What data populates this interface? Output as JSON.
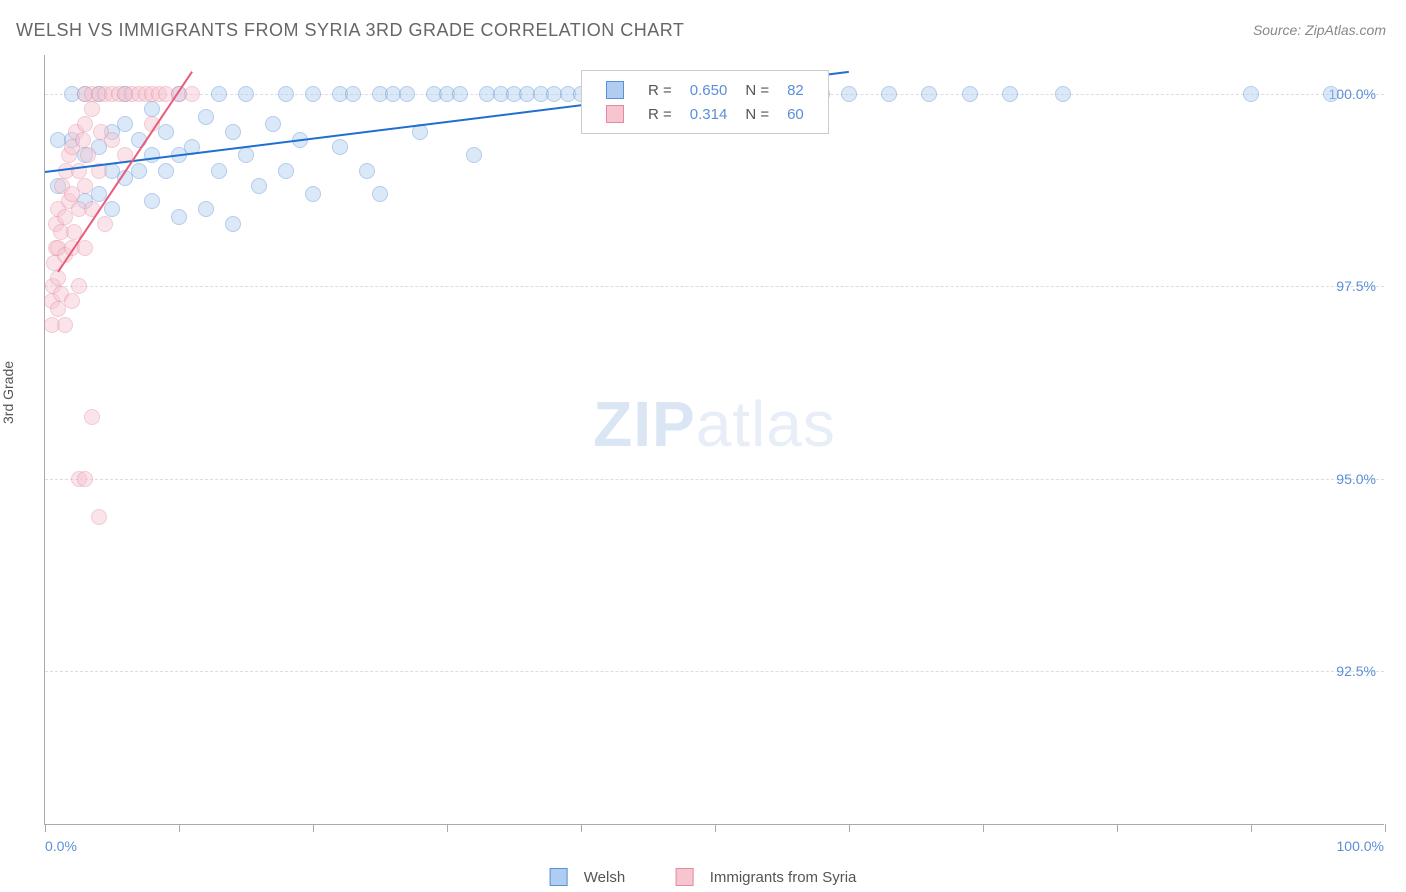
{
  "title": "WELSH VS IMMIGRANTS FROM SYRIA 3RD GRADE CORRELATION CHART",
  "source": "Source: ZipAtlas.com",
  "y_axis_label": "3rd Grade",
  "watermark_zip": "ZIP",
  "watermark_atlas": "atlas",
  "chart": {
    "type": "scatter",
    "background_color": "#ffffff",
    "grid_color": "#dddddd",
    "axis_color": "#aaaaaa",
    "tick_label_color": "#5b8fd6",
    "title_fontsize": 18,
    "title_color": "#666666",
    "label_fontsize": 14,
    "xlim": [
      0,
      100
    ],
    "ylim": [
      90.5,
      100.5
    ],
    "x_ticks": [
      0,
      10,
      20,
      30,
      40,
      50,
      60,
      70,
      80,
      90,
      100
    ],
    "x_tick_labels": {
      "0": "0.0%",
      "100": "100.0%"
    },
    "y_ticks": [
      92.5,
      95.0,
      97.5,
      100.0
    ],
    "y_tick_labels": [
      "92.5%",
      "95.0%",
      "97.5%",
      "100.0%"
    ],
    "marker_radius": 8,
    "marker_opacity": 0.45,
    "line_width": 2,
    "series": [
      {
        "name": "Welsh",
        "color_fill": "#aecdf0",
        "color_stroke": "#5b8fd6",
        "line_color": "#1f6fd1",
        "R": "0.650",
        "N": "82",
        "regression": {
          "x1": 0,
          "y1": 99.0,
          "x2": 60,
          "y2": 100.3
        },
        "points": [
          [
            1,
            98.8
          ],
          [
            1,
            99.4
          ],
          [
            2,
            99.4
          ],
          [
            2,
            100.0
          ],
          [
            3,
            98.6
          ],
          [
            3,
            99.2
          ],
          [
            3,
            100.0
          ],
          [
            4,
            98.7
          ],
          [
            4,
            99.3
          ],
          [
            4,
            100.0
          ],
          [
            5,
            98.5
          ],
          [
            5,
            99.5
          ],
          [
            5,
            99.0
          ],
          [
            6,
            98.9
          ],
          [
            6,
            99.6
          ],
          [
            6,
            100.0
          ],
          [
            7,
            99.0
          ],
          [
            7,
            99.4
          ],
          [
            8,
            98.6
          ],
          [
            8,
            99.2
          ],
          [
            8,
            99.8
          ],
          [
            9,
            99.0
          ],
          [
            9,
            99.5
          ],
          [
            10,
            98.4
          ],
          [
            10,
            99.2
          ],
          [
            10,
            100.0
          ],
          [
            11,
            99.3
          ],
          [
            12,
            98.5
          ],
          [
            12,
            99.7
          ],
          [
            13,
            99.0
          ],
          [
            13,
            100.0
          ],
          [
            14,
            98.3
          ],
          [
            14,
            99.5
          ],
          [
            15,
            99.2
          ],
          [
            15,
            100.0
          ],
          [
            16,
            98.8
          ],
          [
            17,
            99.6
          ],
          [
            18,
            100.0
          ],
          [
            18,
            99.0
          ],
          [
            19,
            99.4
          ],
          [
            20,
            100.0
          ],
          [
            20,
            98.7
          ],
          [
            22,
            100.0
          ],
          [
            22,
            99.3
          ],
          [
            23,
            100.0
          ],
          [
            24,
            99.0
          ],
          [
            25,
            100.0
          ],
          [
            25,
            98.7
          ],
          [
            26,
            100.0
          ],
          [
            27,
            100.0
          ],
          [
            28,
            99.5
          ],
          [
            29,
            100.0
          ],
          [
            30,
            100.0
          ],
          [
            31,
            100.0
          ],
          [
            32,
            99.2
          ],
          [
            33,
            100.0
          ],
          [
            34,
            100.0
          ],
          [
            35,
            100.0
          ],
          [
            36,
            100.0
          ],
          [
            37,
            100.0
          ],
          [
            38,
            100.0
          ],
          [
            39,
            100.0
          ],
          [
            40,
            100.0
          ],
          [
            42,
            100.0
          ],
          [
            43,
            100.0
          ],
          [
            44,
            100.0
          ],
          [
            45,
            100.0
          ],
          [
            47,
            100.0
          ],
          [
            48,
            100.0
          ],
          [
            50,
            100.0
          ],
          [
            52,
            100.0
          ],
          [
            54,
            100.0
          ],
          [
            56,
            100.0
          ],
          [
            58,
            100.0
          ],
          [
            60,
            100.0
          ],
          [
            63,
            100.0
          ],
          [
            66,
            100.0
          ],
          [
            69,
            100.0
          ],
          [
            72,
            100.0
          ],
          [
            76,
            100.0
          ],
          [
            90,
            100.0
          ],
          [
            96,
            100.0
          ]
        ]
      },
      {
        "name": "Immigrants from Syria",
        "color_fill": "#f6c5d0",
        "color_stroke": "#e38ba1",
        "line_color": "#e85b7a",
        "R": "0.314",
        "N": "60",
        "regression": {
          "x1": 1,
          "y1": 97.7,
          "x2": 11,
          "y2": 100.3
        },
        "points": [
          [
            0.5,
            97.0
          ],
          [
            0.5,
            97.3
          ],
          [
            0.6,
            97.5
          ],
          [
            0.7,
            97.8
          ],
          [
            0.8,
            98.0
          ],
          [
            0.8,
            98.3
          ],
          [
            1.0,
            97.2
          ],
          [
            1.0,
            97.6
          ],
          [
            1.0,
            98.0
          ],
          [
            1.0,
            98.5
          ],
          [
            1.2,
            97.4
          ],
          [
            1.2,
            98.2
          ],
          [
            1.3,
            98.8
          ],
          [
            1.5,
            97.0
          ],
          [
            1.5,
            97.9
          ],
          [
            1.5,
            98.4
          ],
          [
            1.6,
            99.0
          ],
          [
            1.8,
            98.6
          ],
          [
            1.8,
            99.2
          ],
          [
            2.0,
            97.3
          ],
          [
            2.0,
            98.0
          ],
          [
            2.0,
            98.7
          ],
          [
            2.0,
            99.3
          ],
          [
            2.2,
            98.2
          ],
          [
            2.3,
            99.5
          ],
          [
            2.5,
            97.5
          ],
          [
            2.5,
            98.5
          ],
          [
            2.5,
            99.0
          ],
          [
            2.8,
            99.4
          ],
          [
            3.0,
            98.0
          ],
          [
            3.0,
            98.8
          ],
          [
            3.0,
            99.6
          ],
          [
            3.0,
            100.0
          ],
          [
            3.2,
            99.2
          ],
          [
            3.5,
            98.5
          ],
          [
            3.5,
            99.8
          ],
          [
            3.5,
            100.0
          ],
          [
            4.0,
            99.0
          ],
          [
            4.0,
            100.0
          ],
          [
            4.2,
            99.5
          ],
          [
            4.5,
            98.3
          ],
          [
            4.5,
            100.0
          ],
          [
            5.0,
            99.4
          ],
          [
            5.0,
            100.0
          ],
          [
            5.5,
            100.0
          ],
          [
            6.0,
            99.2
          ],
          [
            6.0,
            100.0
          ],
          [
            6.5,
            100.0
          ],
          [
            7.0,
            100.0
          ],
          [
            7.5,
            100.0
          ],
          [
            8.0,
            99.6
          ],
          [
            8.0,
            100.0
          ],
          [
            8.5,
            100.0
          ],
          [
            9.0,
            100.0
          ],
          [
            10.0,
            100.0
          ],
          [
            11.0,
            100.0
          ],
          [
            2.5,
            95.0
          ],
          [
            3.0,
            95.0
          ],
          [
            3.5,
            95.8
          ],
          [
            4.0,
            94.5
          ]
        ]
      }
    ]
  },
  "legend_bottom": {
    "series1": "Welsh",
    "series2": "Immigrants from Syria"
  },
  "stats_labels": {
    "R": "R =",
    "N": "N ="
  }
}
